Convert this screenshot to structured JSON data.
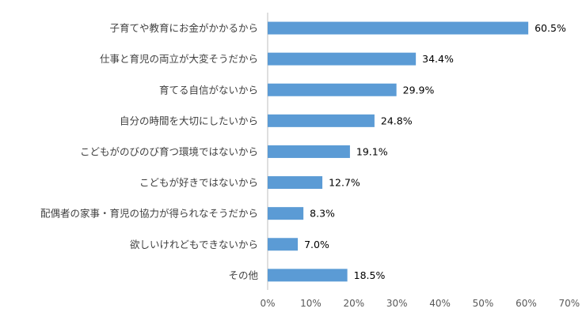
{
  "chart_data": {
    "type": "bar",
    "orientation": "horizontal",
    "categories": [
      "子育てや教育にお金がかかるから",
      "仕事と育児の両立が大変そうだから",
      "育てる自信がないから",
      "自分の時間を大切にしたいから",
      "こどもがのびのび育つ環境ではないから",
      "こどもが好きではないから",
      "配偶者の家事・育児の協力が得られなそうだから",
      "欲しいけれどもできないから",
      "その他"
    ],
    "values": [
      60.5,
      34.4,
      29.9,
      24.8,
      19.1,
      12.7,
      8.3,
      7.0,
      18.5
    ],
    "value_labels": [
      "60.5%",
      "34.4%",
      "29.9%",
      "24.8%",
      "19.1%",
      "12.7%",
      "8.3%",
      "7.0%",
      "18.5%"
    ],
    "xlim": [
      0,
      70
    ],
    "x_ticks": [
      "0%",
      "10%",
      "20%",
      "30%",
      "40%",
      "50%",
      "60%",
      "70%"
    ],
    "grid": false,
    "legend": "none",
    "colors": {
      "bar": "#5b9bd5",
      "axis": "#bfbfbf"
    }
  }
}
